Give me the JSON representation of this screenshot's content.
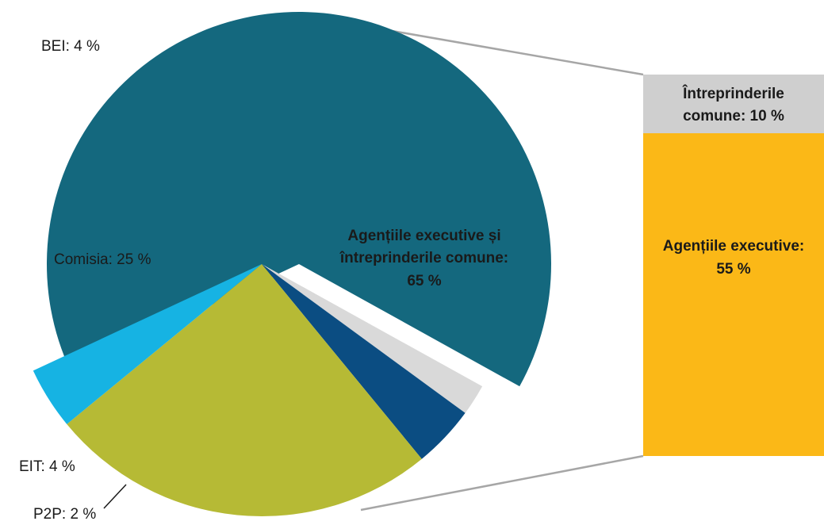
{
  "chart_data": {
    "type": "bar-of-pie",
    "pie": {
      "slices": [
        {
          "key": "agencies",
          "label": "Agențiile executive și întreprinderile comune: 65 %",
          "value": 65,
          "color": "#14687e",
          "exploded": true
        },
        {
          "key": "p2p",
          "label": "P2P: 2 %",
          "value": 2,
          "color": "#d9d9d9"
        },
        {
          "key": "eit",
          "label": "EIT: 4 %",
          "value": 4,
          "color": "#0b4d82"
        },
        {
          "key": "commission",
          "label": "Comisia: 25 %",
          "value": 25,
          "color": "#b6ba35"
        },
        {
          "key": "bei",
          "label": "BEI: 4 %",
          "value": 4,
          "color": "#16b3e3"
        }
      ]
    },
    "bar": {
      "segments": [
        {
          "key": "joint",
          "label": "Întreprinderile comune: 10 %",
          "value": 10,
          "color": "#cfcfcf"
        },
        {
          "key": "exec",
          "label": "Agențiile executive: 55 %",
          "value": 55,
          "color": "#fbb817"
        }
      ]
    }
  },
  "labels": {
    "bei": "BEI: 4 %",
    "commission": "Comisia: 25 %",
    "eit": "EIT: 4 %",
    "p2p": "P2P: 2 %",
    "agencies_line1": "Agențiile executive și",
    "agencies_line2": "întreprinderile comune:",
    "agencies_line3": "65 %",
    "joint_line1": "Întreprinderile",
    "joint_line2": "comune: 10 %",
    "exec_line1": "Agențiile executive:",
    "exec_line2": "55 %"
  }
}
